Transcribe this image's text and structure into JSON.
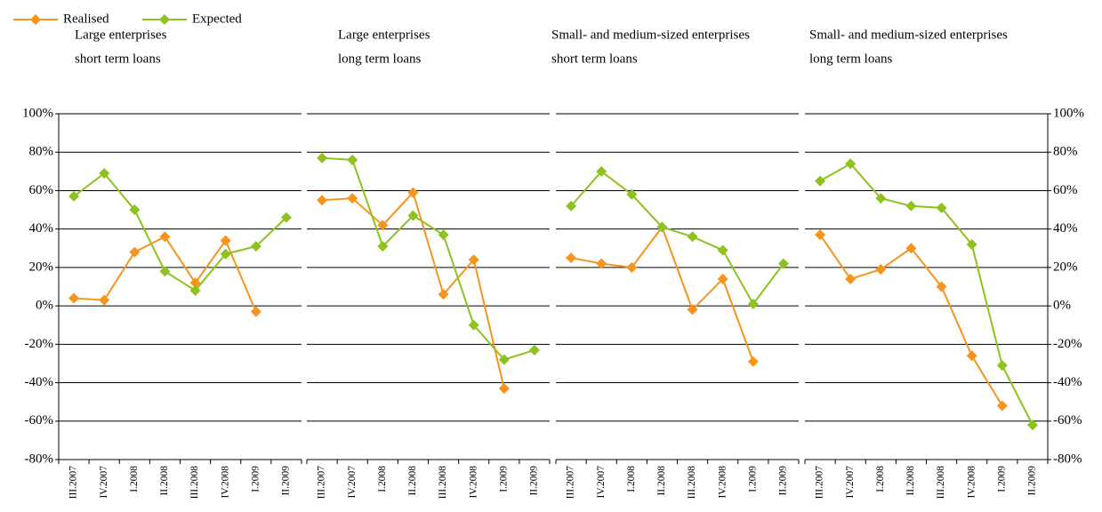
{
  "chart_data": {
    "type": "line",
    "categories": [
      "III.2007",
      "IV.2007",
      "I.2008",
      "II.2008",
      "III.2008",
      "IV.2008",
      "I.2009",
      "II.2009"
    ],
    "ylim": [
      -80,
      100
    ],
    "yticks": [
      {
        "value": -80,
        "label": "-80%"
      },
      {
        "value": -60,
        "label": "-60%"
      },
      {
        "value": -40,
        "label": "-40%"
      },
      {
        "value": -20,
        "label": "-20%"
      },
      {
        "value": 0,
        "label": "0%"
      },
      {
        "value": 20,
        "label": "20%"
      },
      {
        "value": 40,
        "label": "40%"
      },
      {
        "value": 60,
        "label": "60%"
      },
      {
        "value": 80,
        "label": "80%"
      },
      {
        "value": 100,
        "label": "100%"
      }
    ],
    "grid": true,
    "series": [
      {
        "name": "Realised",
        "color": "#f7941d"
      },
      {
        "name": "Expected",
        "color": "#8dc21f"
      }
    ],
    "panels": [
      {
        "title": [
          "Large enterprises",
          "short term loans"
        ],
        "values": [
          [
            4,
            3,
            28,
            36,
            12,
            34,
            -3,
            null
          ],
          [
            57,
            69,
            50,
            18,
            8,
            27,
            31,
            46
          ]
        ]
      },
      {
        "title": [
          "Large enterprises",
          "long term loans"
        ],
        "values": [
          [
            55,
            56,
            42,
            59,
            6,
            24,
            -43,
            null
          ],
          [
            77,
            76,
            31,
            47,
            37,
            -10,
            -28,
            -23
          ]
        ]
      },
      {
        "title": [
          "Small- and medium-sized enterprises",
          "short term loans"
        ],
        "values": [
          [
            25,
            22,
            20,
            41,
            -2,
            14,
            -29,
            null
          ],
          [
            52,
            70,
            58,
            41,
            36,
            29,
            1,
            22
          ]
        ]
      },
      {
        "title": [
          "Small- and medium-sized enterprises",
          "long term loans"
        ],
        "values": [
          [
            37,
            14,
            19,
            30,
            10,
            -26,
            -52,
            null
          ],
          [
            65,
            74,
            56,
            52,
            51,
            32,
            -31,
            -62
          ]
        ]
      }
    ]
  }
}
